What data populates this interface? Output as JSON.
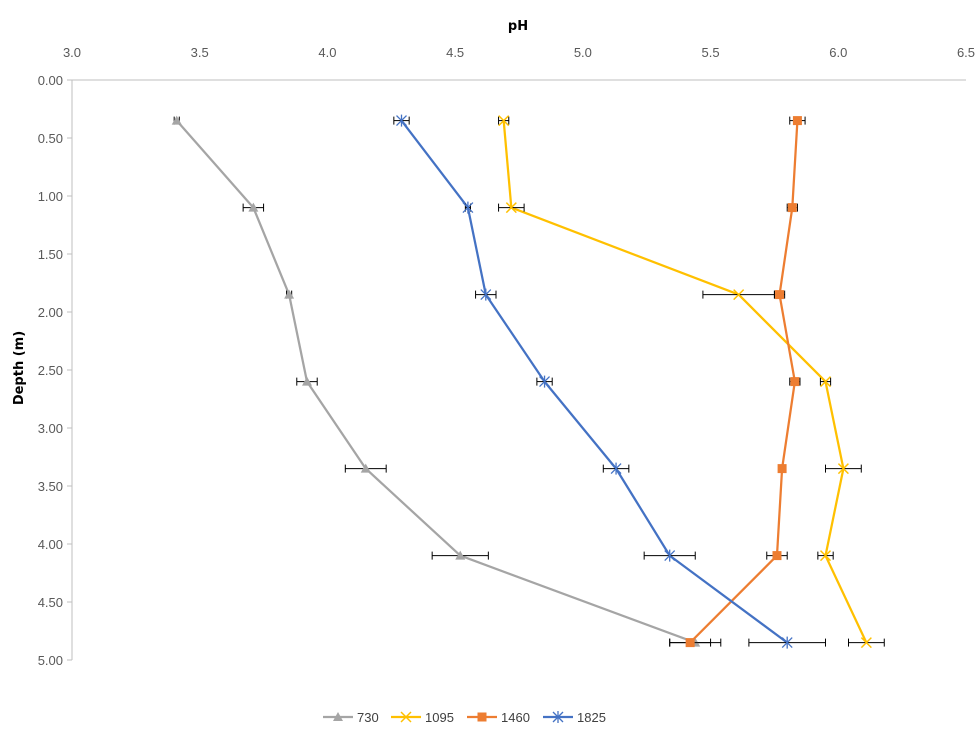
{
  "chart_data": {
    "type": "line",
    "orientation": "depth-profile",
    "xlabel": "pH",
    "ylabel": "Depth (m)",
    "xlim": [
      3.0,
      6.5
    ],
    "ylim": [
      0.0,
      5.0
    ],
    "x_ticks": [
      "3.0",
      "3.5",
      "4.0",
      "4.5",
      "5.0",
      "5.5",
      "6.0",
      "6.5"
    ],
    "y_ticks": [
      "0.00",
      "0.50",
      "1.00",
      "1.50",
      "2.00",
      "2.50",
      "3.00",
      "3.50",
      "4.00",
      "4.50",
      "5.00"
    ],
    "y_inverted": true,
    "x_axis_position": "top",
    "grid": false,
    "legend_position": "bottom-center",
    "depths": [
      0.35,
      1.1,
      1.85,
      2.6,
      3.35,
      4.1,
      4.85
    ],
    "series": [
      {
        "name": "730",
        "color": "#a5a5a5",
        "marker": "triangle",
        "ph": [
          3.41,
          3.71,
          3.85,
          3.92,
          4.15,
          4.52,
          5.44
        ],
        "err": [
          0.01,
          0.04,
          0.01,
          0.04,
          0.08,
          0.11,
          0.1
        ]
      },
      {
        "name": "1095",
        "color": "#ffc000",
        "marker": "x",
        "ph": [
          4.69,
          4.72,
          5.61,
          5.95,
          6.02,
          5.95,
          6.11
        ],
        "err": [
          0.02,
          0.05,
          0.14,
          0.02,
          0.07,
          0.03,
          0.07
        ]
      },
      {
        "name": "1460",
        "color": "#ed7d31",
        "marker": "square",
        "ph": [
          5.84,
          5.82,
          5.77,
          5.83,
          5.78,
          5.76,
          5.42
        ],
        "err": [
          0.03,
          0.02,
          0.02,
          0.02,
          0.0,
          0.04,
          0.08
        ]
      },
      {
        "name": "1825",
        "color": "#4472c4",
        "marker": "asterisk",
        "ph": [
          4.29,
          4.55,
          4.62,
          4.85,
          5.13,
          5.34,
          5.8
        ],
        "err": [
          0.03,
          0.01,
          0.04,
          0.03,
          0.05,
          0.1,
          0.15
        ]
      }
    ]
  }
}
